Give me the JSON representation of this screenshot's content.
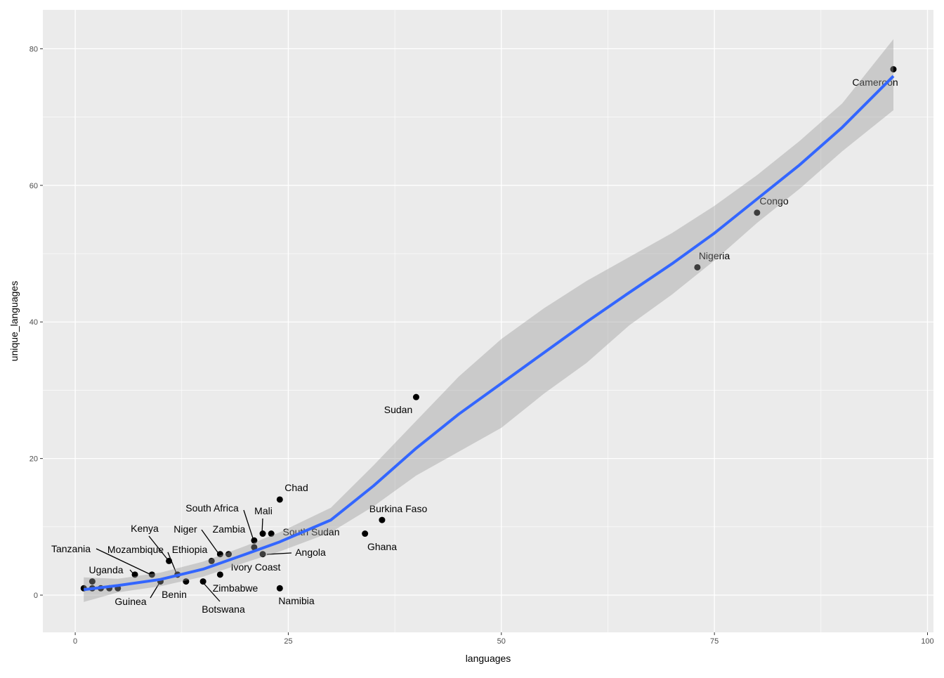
{
  "chart_data": {
    "type": "scatter",
    "title": "",
    "xlabel": "languages",
    "ylabel": "unique_languages",
    "xlim": [
      -3.8,
      100.7
    ],
    "ylim": [
      -5.45,
      85.7
    ],
    "x_ticks": [
      0,
      25,
      50,
      75,
      100
    ],
    "y_ticks": [
      0,
      20,
      40,
      60,
      80
    ],
    "grid": true,
    "colors": {
      "panel": "#ebebeb",
      "grid": "#ffffff",
      "point": "#000000",
      "smooth": "#3366ff",
      "band": "#999999"
    },
    "points": [
      {
        "x": 1,
        "y": 1,
        "label": ""
      },
      {
        "x": 2,
        "y": 2,
        "label": ""
      },
      {
        "x": 2,
        "y": 1,
        "label": ""
      },
      {
        "x": 3,
        "y": 1,
        "label": ""
      },
      {
        "x": 4,
        "y": 1,
        "label": ""
      },
      {
        "x": 5,
        "y": 1,
        "label": ""
      },
      {
        "x": 7,
        "y": 3,
        "label": "Uganda"
      },
      {
        "x": 9,
        "y": 3,
        "label": "Tanzania"
      },
      {
        "x": 10,
        "y": 2,
        "label": "Guinea"
      },
      {
        "x": 11,
        "y": 5,
        "label": "Kenya"
      },
      {
        "x": 12,
        "y": 3,
        "label": "Mozambique"
      },
      {
        "x": 13,
        "y": 2,
        "label": "Benin"
      },
      {
        "x": 15,
        "y": 2,
        "label": "Botswana"
      },
      {
        "x": 16,
        "y": 5,
        "label": "Ethiopia"
      },
      {
        "x": 17,
        "y": 6,
        "label": "Niger"
      },
      {
        "x": 18,
        "y": 6,
        "label": "Zambia"
      },
      {
        "x": 17,
        "y": 3,
        "label": "Zimbabwe"
      },
      {
        "x": 21,
        "y": 8,
        "label": "South Africa"
      },
      {
        "x": 21,
        "y": 7,
        "label": "Ivory Coast"
      },
      {
        "x": 22,
        "y": 9,
        "label": "Mali"
      },
      {
        "x": 23,
        "y": 9,
        "label": "South Sudan"
      },
      {
        "x": 22,
        "y": 6,
        "label": "Angola"
      },
      {
        "x": 24,
        "y": 14,
        "label": "Chad"
      },
      {
        "x": 24,
        "y": 1,
        "label": "Namibia"
      },
      {
        "x": 34,
        "y": 9,
        "label": "Ghana"
      },
      {
        "x": 36,
        "y": 11,
        "label": "Burkina Faso"
      },
      {
        "x": 40,
        "y": 29,
        "label": "Sudan"
      },
      {
        "x": 73,
        "y": 48,
        "label": "Nigeria"
      },
      {
        "x": 80,
        "y": 56,
        "label": "Congo"
      },
      {
        "x": 96,
        "y": 77,
        "label": "Cameroon"
      }
    ],
    "smooth": {
      "x": [
        1,
        5,
        10,
        15,
        20,
        24,
        30,
        35,
        40,
        45,
        50,
        55,
        60,
        65,
        70,
        75,
        80,
        85,
        90,
        96
      ],
      "y": [
        0.8,
        1.4,
        2.3,
        3.8,
        6.0,
        7.8,
        11.0,
        16.0,
        21.5,
        26.5,
        31.0,
        35.5,
        40.0,
        44.3,
        48.5,
        53.0,
        58.0,
        63.0,
        68.5,
        76.0
      ],
      "lower": [
        -1.0,
        0.4,
        1.3,
        2.7,
        4.8,
        6.4,
        9.2,
        13.0,
        17.5,
        21.0,
        24.5,
        29.5,
        34.0,
        39.5,
        44.0,
        49.0,
        54.5,
        59.5,
        65.0,
        71.0
      ],
      "upper": [
        2.6,
        2.4,
        3.3,
        4.9,
        7.2,
        9.2,
        12.8,
        19.0,
        25.5,
        32.0,
        37.5,
        42.0,
        46.0,
        49.5,
        53.0,
        57.0,
        61.5,
        66.5,
        72.0,
        81.4
      ]
    }
  }
}
